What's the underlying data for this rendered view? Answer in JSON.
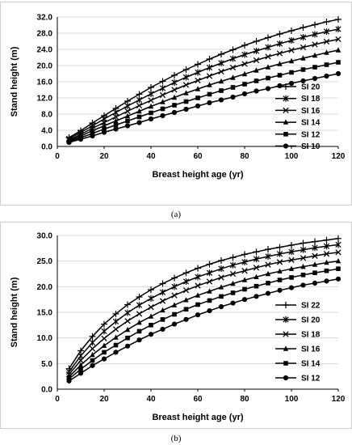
{
  "chart_data": [
    {
      "panel": "a",
      "type": "line",
      "caption": "(a)",
      "xlabel": "Breast height age (yr)",
      "ylabel": "Stand height (m)",
      "xlim": [
        0,
        120
      ],
      "ylim": [
        0,
        32
      ],
      "xticks": [
        0,
        20,
        40,
        60,
        80,
        100,
        120
      ],
      "yticks": [
        0,
        4,
        8,
        12,
        16,
        20,
        24,
        28,
        32
      ],
      "ytick_labels": [
        "0.0",
        "4.0",
        "8.0",
        "12.0",
        "16.0",
        "20.0",
        "24.0",
        "28.0",
        "32.0"
      ],
      "grid": "horizontal",
      "legend_position": "right",
      "x": [
        5,
        10,
        15,
        20,
        25,
        30,
        35,
        40,
        45,
        50,
        55,
        60,
        65,
        70,
        75,
        80,
        85,
        90,
        95,
        100,
        105,
        110,
        115,
        120
      ],
      "series": [
        {
          "name": "SI 20",
          "marker": "plus",
          "values": [
            2.2,
            3.9,
            5.8,
            7.6,
            9.4,
            11.2,
            12.9,
            14.6,
            16.1,
            17.6,
            19.0,
            20.3,
            21.6,
            22.8,
            23.9,
            25.0,
            26.0,
            26.9,
            27.8,
            28.6,
            29.4,
            30.1,
            30.8,
            31.4
          ]
        },
        {
          "name": "SI 18",
          "marker": "star",
          "values": [
            1.9,
            3.5,
            5.1,
            6.8,
            8.4,
            10.0,
            11.5,
            13.0,
            14.4,
            15.8,
            17.1,
            18.3,
            19.5,
            20.6,
            21.7,
            22.7,
            23.6,
            24.5,
            25.4,
            26.2,
            27.0,
            27.7,
            28.4,
            29.0
          ]
        },
        {
          "name": "SI 16",
          "marker": "cross",
          "values": [
            1.6,
            3.0,
            4.5,
            5.9,
            7.3,
            8.7,
            10.1,
            11.4,
            12.7,
            14.0,
            15.2,
            16.3,
            17.4,
            18.5,
            19.5,
            20.4,
            21.3,
            22.2,
            23.0,
            23.8,
            24.5,
            25.2,
            25.9,
            26.5
          ]
        },
        {
          "name": "SI 14",
          "marker": "triangle",
          "values": [
            1.4,
            2.6,
            3.9,
            5.1,
            6.3,
            7.5,
            8.7,
            9.9,
            11.0,
            12.1,
            13.2,
            14.2,
            15.2,
            16.1,
            17.0,
            17.9,
            18.8,
            19.6,
            20.4,
            21.1,
            21.8,
            22.5,
            23.2,
            23.8
          ]
        },
        {
          "name": "SI 12",
          "marker": "square",
          "values": [
            1.2,
            2.2,
            3.2,
            4.3,
            5.3,
            6.3,
            7.3,
            8.3,
            9.3,
            10.2,
            11.1,
            12.0,
            12.9,
            13.8,
            14.6,
            15.4,
            16.2,
            16.9,
            17.6,
            18.3,
            19.0,
            19.6,
            20.2,
            20.8
          ]
        },
        {
          "name": "SI 10",
          "marker": "circle",
          "values": [
            1.0,
            1.8,
            2.6,
            3.5,
            4.3,
            5.1,
            5.9,
            6.8,
            7.6,
            8.4,
            9.2,
            10.0,
            10.8,
            11.5,
            12.2,
            13.0,
            13.7,
            14.3,
            15.0,
            15.6,
            16.2,
            16.8,
            17.4,
            18.0
          ]
        }
      ]
    },
    {
      "panel": "b",
      "type": "line",
      "caption": "(b)",
      "xlabel": "Breast height age (yr)",
      "ylabel": "Stand height (m)",
      "xlim": [
        0,
        120
      ],
      "ylim": [
        0,
        30
      ],
      "xticks": [
        0,
        20,
        40,
        60,
        80,
        100,
        120
      ],
      "yticks": [
        0,
        5,
        10,
        15,
        20,
        25,
        30
      ],
      "ytick_labels": [
        "0.0",
        "5.0",
        "10.0",
        "15.0",
        "20.0",
        "25.0",
        "30.0"
      ],
      "grid": "horizontal",
      "legend_position": "right",
      "x": [
        5,
        10,
        15,
        20,
        25,
        30,
        35,
        40,
        45,
        50,
        55,
        60,
        65,
        70,
        75,
        80,
        85,
        90,
        95,
        100,
        105,
        110,
        115,
        120
      ],
      "series": [
        {
          "name": "SI 22",
          "marker": "plus",
          "values": [
            4.0,
            7.5,
            10.3,
            12.7,
            14.7,
            16.5,
            18.0,
            19.4,
            20.6,
            21.7,
            22.7,
            23.6,
            24.4,
            25.1,
            25.7,
            26.3,
            26.8,
            27.3,
            27.7,
            28.1,
            28.5,
            28.8,
            29.1,
            29.4
          ]
        },
        {
          "name": "SI 20",
          "marker": "star",
          "values": [
            3.4,
            6.5,
            9.1,
            11.3,
            13.2,
            14.9,
            16.4,
            17.7,
            18.9,
            20.0,
            21.0,
            21.9,
            22.7,
            23.5,
            24.2,
            24.8,
            25.4,
            25.9,
            26.4,
            26.8,
            27.2,
            27.6,
            27.9,
            28.2
          ]
        },
        {
          "name": "SI 18",
          "marker": "cross",
          "values": [
            2.9,
            5.6,
            7.9,
            9.9,
            11.7,
            13.3,
            14.7,
            16.0,
            17.2,
            18.3,
            19.3,
            20.2,
            21.0,
            21.8,
            22.5,
            23.1,
            23.7,
            24.3,
            24.8,
            25.2,
            25.6,
            26.0,
            26.4,
            26.7
          ]
        },
        {
          "name": "SI 16",
          "marker": "triangle",
          "values": [
            2.4,
            4.7,
            6.7,
            8.5,
            10.1,
            11.6,
            13.0,
            14.2,
            15.4,
            16.4,
            17.4,
            18.3,
            19.1,
            19.9,
            20.6,
            21.3,
            21.9,
            22.5,
            23.0,
            23.5,
            23.9,
            24.3,
            24.7,
            25.0
          ]
        },
        {
          "name": "SI 14",
          "marker": "square",
          "values": [
            2.0,
            3.9,
            5.6,
            7.2,
            8.6,
            10.0,
            11.3,
            12.5,
            13.6,
            14.6,
            15.6,
            16.5,
            17.3,
            18.1,
            18.8,
            19.5,
            20.1,
            20.7,
            21.3,
            21.8,
            22.3,
            22.7,
            23.1,
            23.5
          ]
        },
        {
          "name": "SI 12",
          "marker": "circle",
          "values": [
            1.6,
            3.1,
            4.6,
            5.9,
            7.2,
            8.4,
            9.6,
            10.7,
            11.7,
            12.7,
            13.6,
            14.5,
            15.3,
            16.1,
            16.8,
            17.5,
            18.1,
            18.7,
            19.3,
            19.8,
            20.3,
            20.7,
            21.1,
            21.5
          ]
        }
      ]
    }
  ]
}
